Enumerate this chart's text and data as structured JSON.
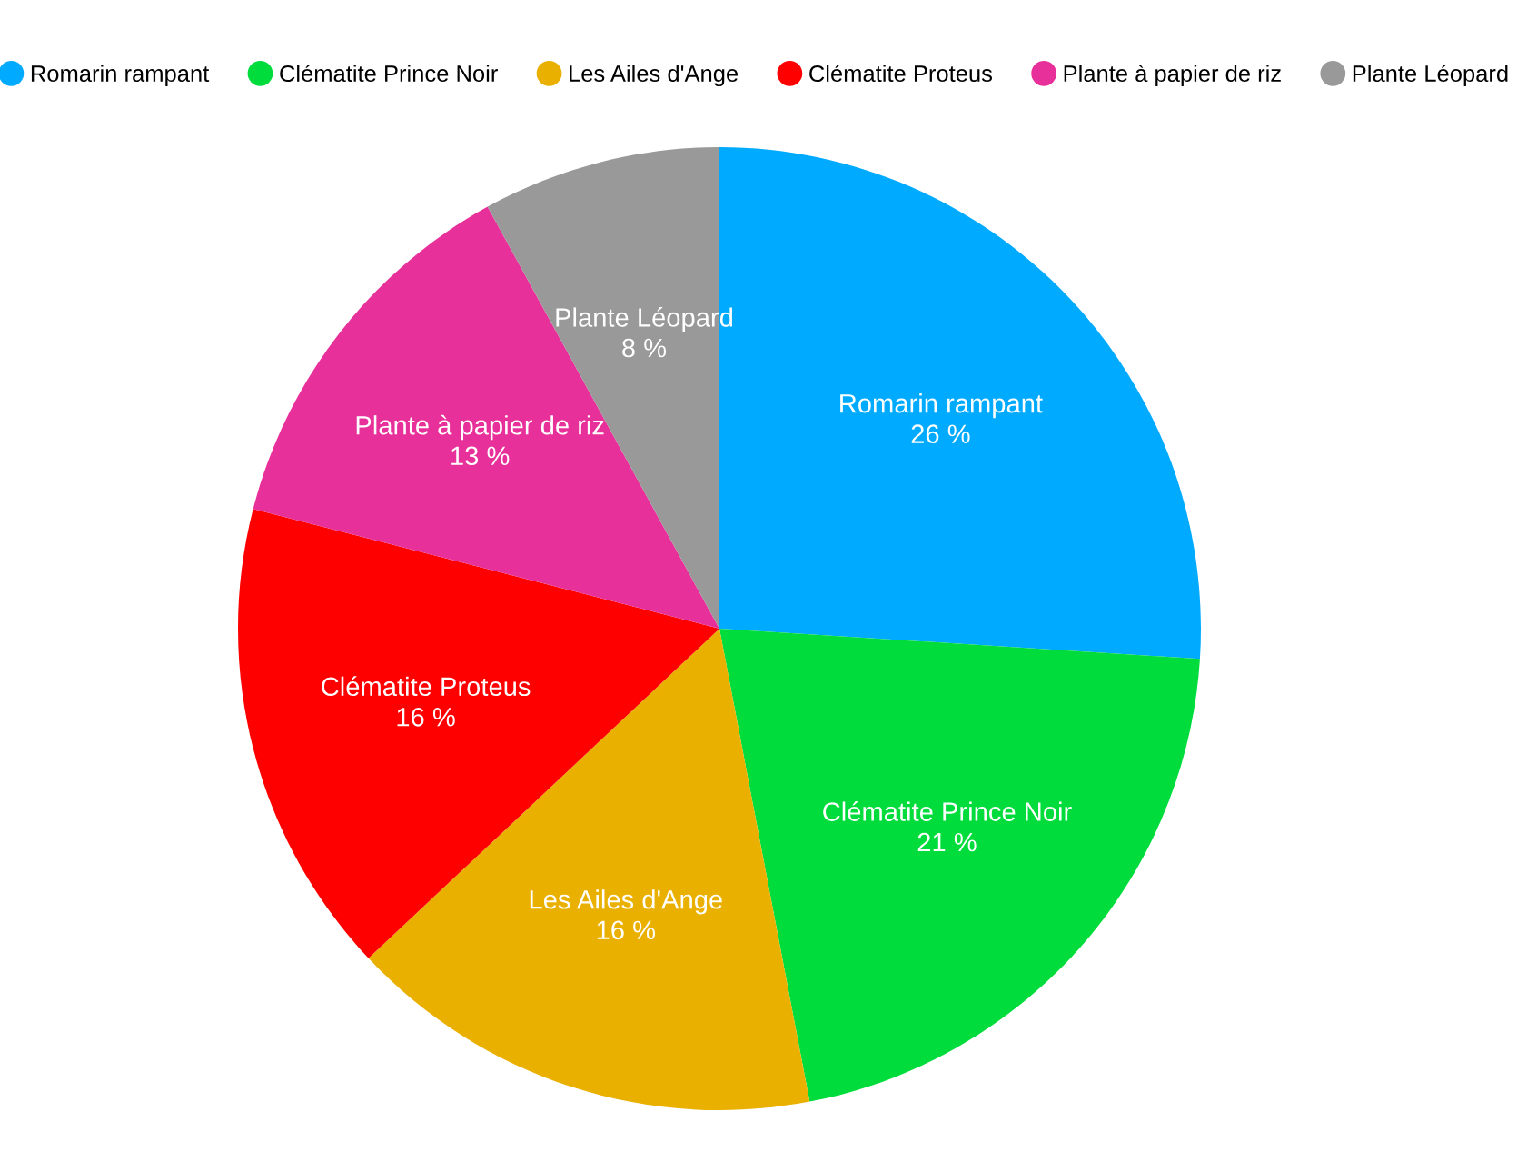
{
  "chart_data": {
    "type": "pie",
    "categories": [
      "Romarin rampant",
      "Clématite Prince Noir",
      "Les Ailes d'Ange",
      "Clématite Proteus",
      "Plante à papier de riz",
      "Plante Léopard"
    ],
    "values": [
      26,
      21,
      16,
      16,
      13,
      8
    ],
    "value_labels": [
      "26 %",
      "21 %",
      "16 %",
      "16 %",
      "13 %",
      "8 %"
    ],
    "colors": [
      "#00aaff",
      "#00dc3c",
      "#eab000",
      "#ff0000",
      "#e8309a",
      "#999999"
    ],
    "legend": "top"
  }
}
